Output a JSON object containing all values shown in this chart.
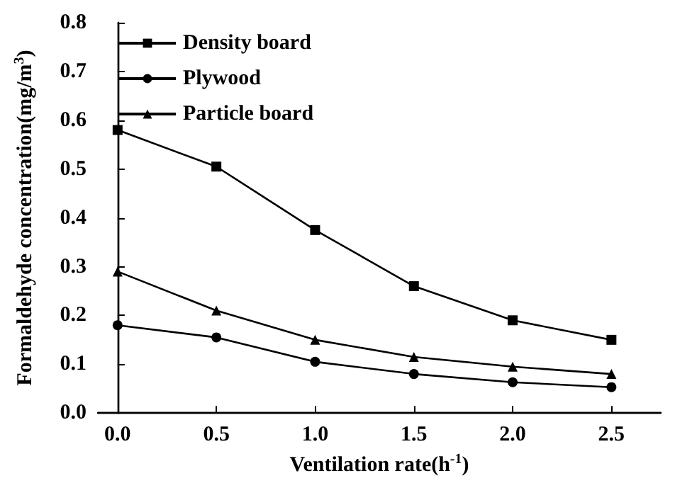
{
  "chart_data": {
    "type": "line",
    "xlabel": "Ventilation rate(h$^{-1}$)",
    "ylabel": "Formaldehyde concentration(mg/m$^{3}$)",
    "x": [
      0.0,
      0.5,
      1.0,
      1.5,
      2.0,
      2.5
    ],
    "series": [
      {
        "name": "Density board",
        "color": "#000000",
        "marker": "square",
        "values": [
          0.58,
          0.505,
          0.375,
          0.26,
          0.19,
          0.15
        ]
      },
      {
        "name": "Plywood",
        "color": "#000000",
        "marker": "circle",
        "values": [
          0.18,
          0.155,
          0.105,
          0.08,
          0.063,
          0.053
        ]
      },
      {
        "name": "Particle board",
        "color": "#000000",
        "marker": "triangle",
        "values": [
          0.29,
          0.21,
          0.15,
          0.115,
          0.095,
          0.08
        ]
      }
    ],
    "xlim": [
      -0.1,
      2.75
    ],
    "xticks": [
      {
        "value": 0,
        "label": "0.0"
      },
      0.5,
      {
        "value": 1,
        "label": "1.0"
      },
      1.5,
      {
        "value": 2,
        "label": "2.0"
      },
      2.5
    ],
    "ylim": [
      0,
      0.8
    ],
    "yticks": [
      {
        "value": 0,
        "label": "0.0"
      },
      0.1,
      0.2,
      0.3,
      0.4,
      0.5,
      0.6,
      0.7,
      0.8
    ],
    "grid": false,
    "legend": "top left",
    "line_style": "solid"
  }
}
